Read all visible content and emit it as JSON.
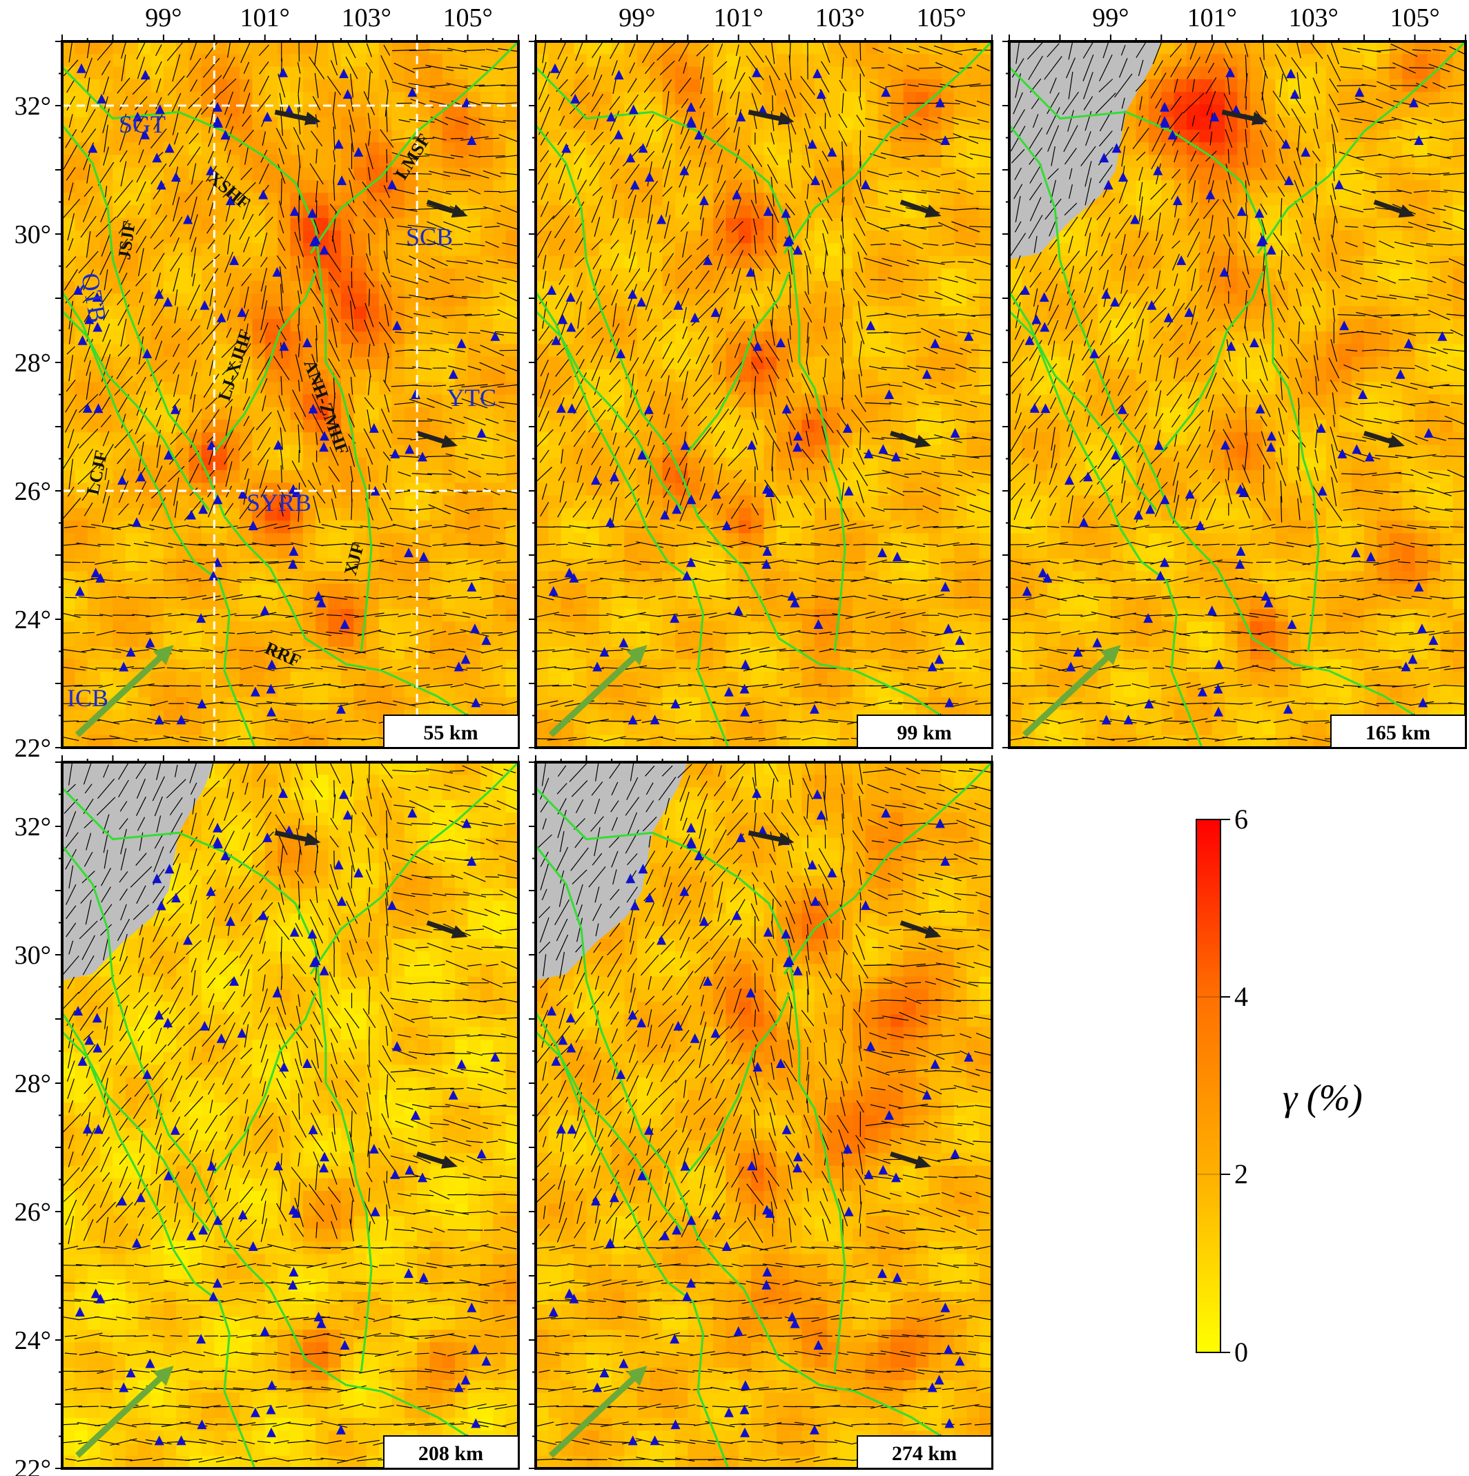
{
  "figure": {
    "axis": {
      "lon_ticks": [
        "99°",
        "101°",
        "103°",
        "105°"
      ],
      "lat_ticks_top": [
        "32°",
        "30°",
        "28°",
        "26°",
        "24°",
        "22°"
      ],
      "lat_ticks_bottom": [
        "32°",
        "30°",
        "28°",
        "26°",
        "24°",
        "22°"
      ]
    },
    "panels": [
      {
        "depth_label": "55 km",
        "region_mask": "none",
        "mean_level": 3.0
      },
      {
        "depth_label": "99 km",
        "region_mask": "none",
        "mean_level": 2.7
      },
      {
        "depth_label": "165 km",
        "region_mask": "northwest-grey",
        "mean_level": 2.6
      },
      {
        "depth_label": "208 km",
        "region_mask": "northwest-grey",
        "mean_level": 1.8
      },
      {
        "depth_label": "274 km",
        "region_mask": "northwest-grey",
        "mean_level": 2.7
      }
    ],
    "annotations": {
      "blocks": [
        "SGT",
        "SCB",
        "QTB",
        "YTC",
        "SYRB",
        "ICB"
      ],
      "faults": [
        "XSHF",
        "LMSF",
        "JSJF",
        "LJ-XJHF",
        "ANH-ZMHF",
        "LCJF",
        "XJF",
        "RRF"
      ]
    },
    "colorbar": {
      "label": "γ (%)",
      "ticks": [
        "6",
        "4",
        "2",
        "0"
      ],
      "range": [
        0,
        6
      ],
      "colors": [
        "#ffff00",
        "#ffb000",
        "#ff7000",
        "#ff0000"
      ]
    },
    "colors": {
      "fault": "#33dd33",
      "station": "#1010cc",
      "mask": "#bebebe",
      "gps_arrow": "#222222",
      "apm_arrow": "#6aaa3a",
      "guide": "#ffffff"
    },
    "icons": {
      "station": "triangle-icon",
      "gps_arrow": "arrow-icon",
      "apm_arrow": "arrow-icon"
    }
  }
}
